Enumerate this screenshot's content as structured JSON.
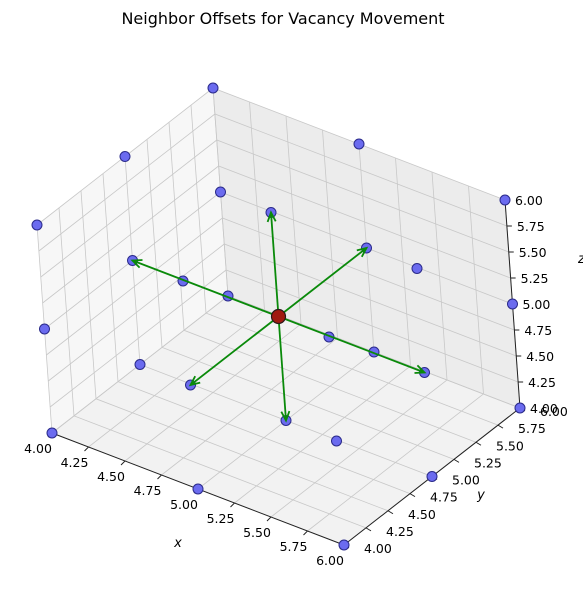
{
  "chart_data": {
    "type": "scatter",
    "projection": "3d",
    "title": "Neighbor Offsets for Vacancy Movement",
    "xlabel": "x",
    "ylabel": "y",
    "zlabel": "z",
    "xlim": [
      4.0,
      6.0
    ],
    "ylim": [
      4.0,
      6.0
    ],
    "zlim": [
      4.0,
      6.0
    ],
    "xticks": [
      "4.00",
      "4.25",
      "4.50",
      "4.75",
      "5.00",
      "5.25",
      "5.50",
      "5.75",
      "6.00"
    ],
    "yticks": [
      "4.00",
      "4.25",
      "4.50",
      "4.75",
      "5.00",
      "5.25",
      "5.50",
      "5.75",
      "6.00"
    ],
    "zticks": [
      "4.00",
      "4.25",
      "4.50",
      "4.75",
      "5.00",
      "5.25",
      "5.50",
      "5.75",
      "6.00"
    ],
    "grid": true,
    "lattice_points": {
      "color": "#6b6bef",
      "edge_color": "#2a2a8a",
      "x_values": [
        4,
        5,
        6
      ],
      "y_values": [
        4,
        5,
        6
      ],
      "z_values": [
        4,
        5,
        6
      ]
    },
    "vacancy": {
      "x": 5,
      "y": 5,
      "z": 5,
      "color": "#a01a10"
    },
    "arrows": {
      "color": "#0a8a0a",
      "origin": [
        5,
        5,
        5
      ],
      "offsets": [
        [
          1,
          0,
          0
        ],
        [
          -1,
          0,
          0
        ],
        [
          0,
          1,
          0
        ],
        [
          0,
          -1,
          0
        ],
        [
          0,
          0,
          1
        ],
        [
          0,
          0,
          -1
        ]
      ]
    }
  }
}
